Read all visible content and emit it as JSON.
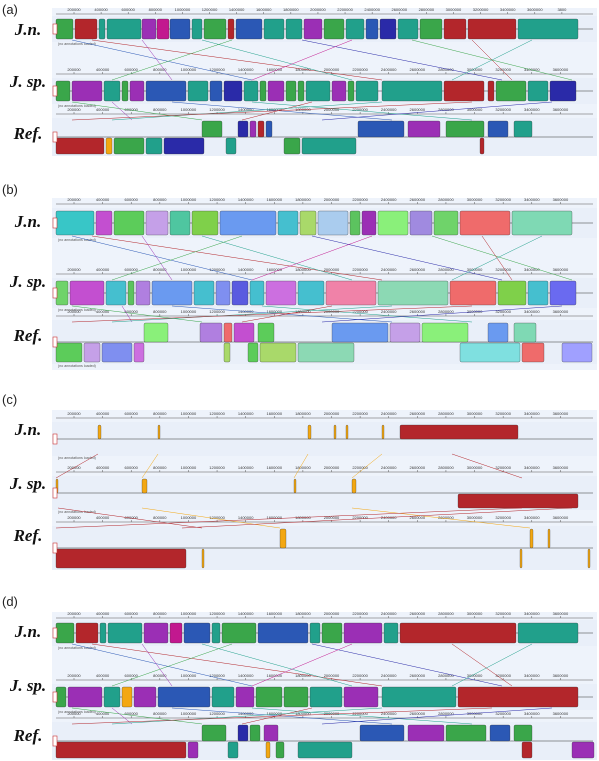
{
  "panels": [
    {
      "letter": "(a)",
      "genomes": [
        "J.n.",
        "J. sp.",
        "Ref."
      ],
      "ticks_top": [
        "200000",
        "400000",
        "600000",
        "800000",
        "1000000",
        "1200000",
        "1400000",
        "1600000",
        "1800000",
        "2000000",
        "2200000",
        "2400000",
        "2600000",
        "2800000",
        "3000000",
        "3200000",
        "3400000",
        "3600000",
        "3800"
      ],
      "ticks_mid": [
        "200000",
        "400000",
        "600000",
        "800000",
        "1000000",
        "1200000",
        "1400000",
        "1600000",
        "1800000",
        "2000000",
        "2200000",
        "2400000",
        "2600000",
        "2800000",
        "3000000",
        "3200000",
        "3400000",
        "3600000"
      ],
      "ticks_bot": [
        "200000",
        "400000",
        "600000",
        "800000",
        "1000000",
        "1200000",
        "1400000",
        "1600000",
        "1800000",
        "2000000",
        "2200000",
        "2400000",
        "2600000",
        "2800000",
        "3000000",
        "3200000",
        "3400000",
        "3600000"
      ],
      "note": "(no annotations loaded)"
    },
    {
      "letter": "(b)",
      "genomes": [
        "J.n.",
        "J. sp.",
        "Ref."
      ],
      "ticks_top": [
        "200000",
        "400000",
        "600000",
        "800000",
        "1000000",
        "1200000",
        "1400000",
        "1600000",
        "1800000",
        "2000000",
        "2200000",
        "2400000",
        "2600000",
        "2800000",
        "3000000",
        "3200000",
        "3400000",
        "3600000"
      ],
      "ticks_mid": [
        "200000",
        "400000",
        "600000",
        "800000",
        "1000000",
        "1200000",
        "1400000",
        "1600000",
        "1800000",
        "2000000",
        "2200000",
        "2400000",
        "2600000",
        "2800000",
        "3000000",
        "3200000",
        "3400000",
        "3600000"
      ],
      "ticks_bot": [
        "200000",
        "400000",
        "600000",
        "800000",
        "1000000",
        "1200000",
        "1400000",
        "1600000",
        "1800000",
        "2000000",
        "2200000",
        "2400000",
        "2600000",
        "2800000",
        "3000000",
        "3200000",
        "3400000",
        "3600000"
      ],
      "note": "(no annotations loaded)"
    },
    {
      "letter": "(c)",
      "genomes": [
        "J.n.",
        "J. sp.",
        "Ref."
      ],
      "ticks_top": [
        "200000",
        "400000",
        "600000",
        "800000",
        "1000000",
        "1200000",
        "1400000",
        "1600000",
        "1800000",
        "2000000",
        "2200000",
        "2400000",
        "2600000",
        "2800000",
        "3000000",
        "3200000",
        "3400000",
        "3600000"
      ],
      "ticks_mid": [
        "200000",
        "400000",
        "600000",
        "800000",
        "1000000",
        "1200000",
        "1400000",
        "1600000",
        "1800000",
        "2000000",
        "2200000",
        "2400000",
        "2600000",
        "2800000",
        "3000000",
        "3200000",
        "3400000",
        "3600000"
      ],
      "ticks_bot": [
        "200000",
        "400000",
        "600000",
        "800000",
        "1000000",
        "1200000",
        "1400000",
        "1600000",
        "1800000",
        "2000000",
        "2200000",
        "2400000",
        "2600000",
        "2800000",
        "3000000",
        "3200000",
        "3400000",
        "3600000"
      ],
      "note": "(no annotations loaded)"
    },
    {
      "letter": "(d)",
      "genomes": [
        "J.n.",
        "J. sp.",
        "Ref."
      ],
      "ticks_top": [
        "200000",
        "400000",
        "600000",
        "800000",
        "1000000",
        "1200000",
        "1400000",
        "1600000",
        "1800000",
        "2000000",
        "2200000",
        "2400000",
        "2600000",
        "2800000",
        "3000000",
        "3200000",
        "3400000",
        "3600000"
      ],
      "ticks_mid": [
        "200000",
        "400000",
        "600000",
        "800000",
        "1000000",
        "1200000",
        "1400000",
        "1600000",
        "1800000",
        "2000000",
        "2200000",
        "2400000",
        "2600000",
        "2800000",
        "3000000",
        "3200000",
        "3400000",
        "3600000"
      ],
      "ticks_bot": [
        "200000",
        "400000",
        "600000",
        "800000",
        "1000000",
        "1200000",
        "1400000",
        "1600000",
        "1800000",
        "2000000",
        "2200000",
        "2400000",
        "2600000",
        "2800000",
        "3000000",
        "3200000",
        "3400000",
        "3600000"
      ],
      "note": "(no annotations loaded)"
    }
  ],
  "palette": {
    "green": "#3aa64a",
    "red": "#b3262b",
    "teal": "#21a08b",
    "purple": "#9b2fb5",
    "blue": "#2b58b5",
    "magenta": "#c2188f",
    "darkgreen": "#2b7d35",
    "navy": "#2a2aa8",
    "lime": "#7fbf3a",
    "cyan": "#27b3c7",
    "yellow": "#f3a712",
    "lightgreen": "#5cc35f"
  }
}
